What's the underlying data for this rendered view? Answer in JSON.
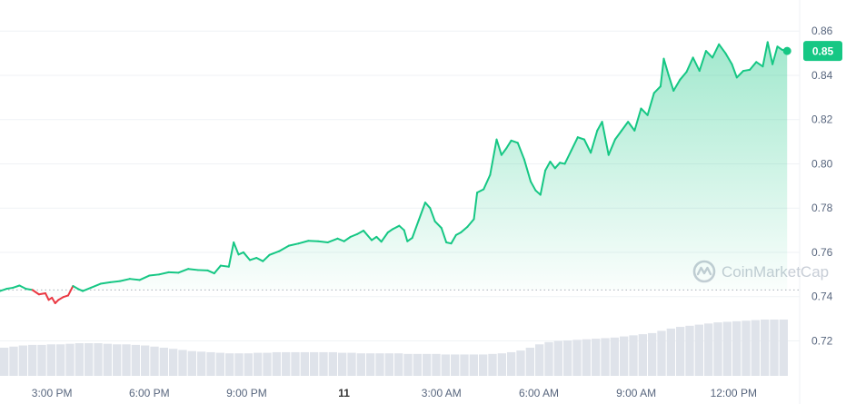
{
  "chart_data": {
    "type": "line",
    "y_ticks": [
      "0.86",
      "0.84",
      "0.82",
      "0.80",
      "0.78",
      "0.76",
      "0.74",
      "0.72"
    ],
    "y_tick_values": [
      0.86,
      0.84,
      0.82,
      0.8,
      0.78,
      0.76,
      0.74,
      0.72
    ],
    "ylim": [
      0.705,
      0.865
    ],
    "x_ticks": [
      "3:00 PM",
      "6:00 PM",
      "9:00 PM",
      "11",
      "3:00 AM",
      "6:00 AM",
      "9:00 AM",
      "12:00 PM"
    ],
    "x_tick_hours": [
      15,
      18,
      21,
      24,
      27,
      30,
      33,
      36
    ],
    "xlim_hours": [
      13.4,
      37.7
    ],
    "reference_price": 0.743,
    "current_price": 0.851,
    "current_price_label": "0.85",
    "grid": true,
    "colors": {
      "up": "#16c784",
      "down": "#ea3943",
      "area_top": "#16c784",
      "volume": "#dfe3ea",
      "grid": "#eff2f5",
      "reference": "#aab0ba"
    },
    "price_series": [
      [
        13.4,
        0.7425
      ],
      [
        13.6,
        0.7435
      ],
      [
        13.8,
        0.744
      ],
      [
        14.0,
        0.745
      ],
      [
        14.2,
        0.7435
      ],
      [
        14.4,
        0.743
      ],
      [
        14.6,
        0.741
      ],
      [
        14.8,
        0.7415
      ],
      [
        14.9,
        0.7385
      ],
      [
        15.0,
        0.7395
      ],
      [
        15.1,
        0.737
      ],
      [
        15.2,
        0.7385
      ],
      [
        15.35,
        0.7398
      ],
      [
        15.5,
        0.7405
      ],
      [
        15.65,
        0.7448
      ],
      [
        15.8,
        0.7435
      ],
      [
        15.95,
        0.7425
      ],
      [
        16.2,
        0.744
      ],
      [
        16.5,
        0.7458
      ],
      [
        16.8,
        0.7465
      ],
      [
        17.1,
        0.747
      ],
      [
        17.4,
        0.748
      ],
      [
        17.7,
        0.7475
      ],
      [
        18.0,
        0.7495
      ],
      [
        18.3,
        0.75
      ],
      [
        18.6,
        0.751
      ],
      [
        18.9,
        0.7508
      ],
      [
        19.2,
        0.7525
      ],
      [
        19.5,
        0.752
      ],
      [
        19.8,
        0.7518
      ],
      [
        20.0,
        0.7505
      ],
      [
        20.2,
        0.754
      ],
      [
        20.45,
        0.7535
      ],
      [
        20.6,
        0.7645
      ],
      [
        20.75,
        0.759
      ],
      [
        20.9,
        0.76
      ],
      [
        21.1,
        0.7565
      ],
      [
        21.3,
        0.7575
      ],
      [
        21.5,
        0.756
      ],
      [
        21.7,
        0.7588
      ],
      [
        22.0,
        0.7605
      ],
      [
        22.3,
        0.763
      ],
      [
        22.6,
        0.764
      ],
      [
        22.9,
        0.7652
      ],
      [
        23.2,
        0.765
      ],
      [
        23.5,
        0.7645
      ],
      [
        23.8,
        0.7662
      ],
      [
        24.0,
        0.765
      ],
      [
        24.2,
        0.767
      ],
      [
        24.4,
        0.7682
      ],
      [
        24.6,
        0.7698
      ],
      [
        24.85,
        0.7655
      ],
      [
        25.0,
        0.767
      ],
      [
        25.15,
        0.7648
      ],
      [
        25.35,
        0.769
      ],
      [
        25.5,
        0.7705
      ],
      [
        25.7,
        0.772
      ],
      [
        25.85,
        0.77
      ],
      [
        25.95,
        0.765
      ],
      [
        26.1,
        0.7665
      ],
      [
        26.3,
        0.7745
      ],
      [
        26.5,
        0.7825
      ],
      [
        26.65,
        0.78
      ],
      [
        26.8,
        0.774
      ],
      [
        27.0,
        0.771
      ],
      [
        27.15,
        0.7645
      ],
      [
        27.3,
        0.764
      ],
      [
        27.45,
        0.7678
      ],
      [
        27.6,
        0.769
      ],
      [
        27.8,
        0.7715
      ],
      [
        28.0,
        0.775
      ],
      [
        28.1,
        0.787
      ],
      [
        28.3,
        0.7885
      ],
      [
        28.5,
        0.795
      ],
      [
        28.7,
        0.811
      ],
      [
        28.85,
        0.804
      ],
      [
        29.0,
        0.807
      ],
      [
        29.15,
        0.8105
      ],
      [
        29.35,
        0.8095
      ],
      [
        29.55,
        0.802
      ],
      [
        29.75,
        0.792
      ],
      [
        29.9,
        0.788
      ],
      [
        30.05,
        0.786
      ],
      [
        30.2,
        0.797
      ],
      [
        30.35,
        0.801
      ],
      [
        30.5,
        0.798
      ],
      [
        30.65,
        0.8005
      ],
      [
        30.8,
        0.8
      ],
      [
        31.0,
        0.806
      ],
      [
        31.2,
        0.812
      ],
      [
        31.4,
        0.811
      ],
      [
        31.6,
        0.805
      ],
      [
        31.8,
        0.815
      ],
      [
        31.95,
        0.819
      ],
      [
        32.15,
        0.804
      ],
      [
        32.35,
        0.811
      ],
      [
        32.55,
        0.815
      ],
      [
        32.75,
        0.819
      ],
      [
        32.95,
        0.815
      ],
      [
        33.15,
        0.825
      ],
      [
        33.35,
        0.822
      ],
      [
        33.55,
        0.832
      ],
      [
        33.75,
        0.835
      ],
      [
        33.85,
        0.8475
      ],
      [
        34.0,
        0.84
      ],
      [
        34.15,
        0.833
      ],
      [
        34.35,
        0.838
      ],
      [
        34.55,
        0.8415
      ],
      [
        34.75,
        0.848
      ],
      [
        34.95,
        0.842
      ],
      [
        35.15,
        0.851
      ],
      [
        35.35,
        0.848
      ],
      [
        35.55,
        0.854
      ],
      [
        35.75,
        0.85
      ],
      [
        35.95,
        0.845
      ],
      [
        36.1,
        0.839
      ],
      [
        36.3,
        0.842
      ],
      [
        36.5,
        0.8425
      ],
      [
        36.7,
        0.846
      ],
      [
        36.9,
        0.844
      ],
      [
        37.05,
        0.855
      ],
      [
        37.2,
        0.845
      ],
      [
        37.35,
        0.853
      ],
      [
        37.5,
        0.8515
      ],
      [
        37.65,
        0.851
      ]
    ],
    "volume_series": [
      0.5,
      0.52,
      0.54,
      0.55,
      0.55,
      0.56,
      0.56,
      0.57,
      0.58,
      0.58,
      0.58,
      0.57,
      0.56,
      0.56,
      0.55,
      0.54,
      0.52,
      0.5,
      0.48,
      0.46,
      0.44,
      0.43,
      0.42,
      0.41,
      0.4,
      0.4,
      0.4,
      0.41,
      0.41,
      0.42,
      0.42,
      0.42,
      0.42,
      0.42,
      0.42,
      0.42,
      0.41,
      0.41,
      0.4,
      0.4,
      0.4,
      0.4,
      0.4,
      0.39,
      0.39,
      0.39,
      0.39,
      0.38,
      0.38,
      0.38,
      0.38,
      0.38,
      0.39,
      0.4,
      0.42,
      0.45,
      0.5,
      0.56,
      0.6,
      0.62,
      0.63,
      0.64,
      0.65,
      0.66,
      0.67,
      0.68,
      0.7,
      0.72,
      0.74,
      0.76,
      0.8,
      0.84,
      0.87,
      0.89,
      0.91,
      0.93,
      0.95,
      0.96,
      0.97,
      0.98,
      0.99,
      1.0,
      1.0,
      1.0
    ]
  },
  "watermark": {
    "text": "CoinMarketCap",
    "icon": "coinmarketcap-logo-icon"
  }
}
